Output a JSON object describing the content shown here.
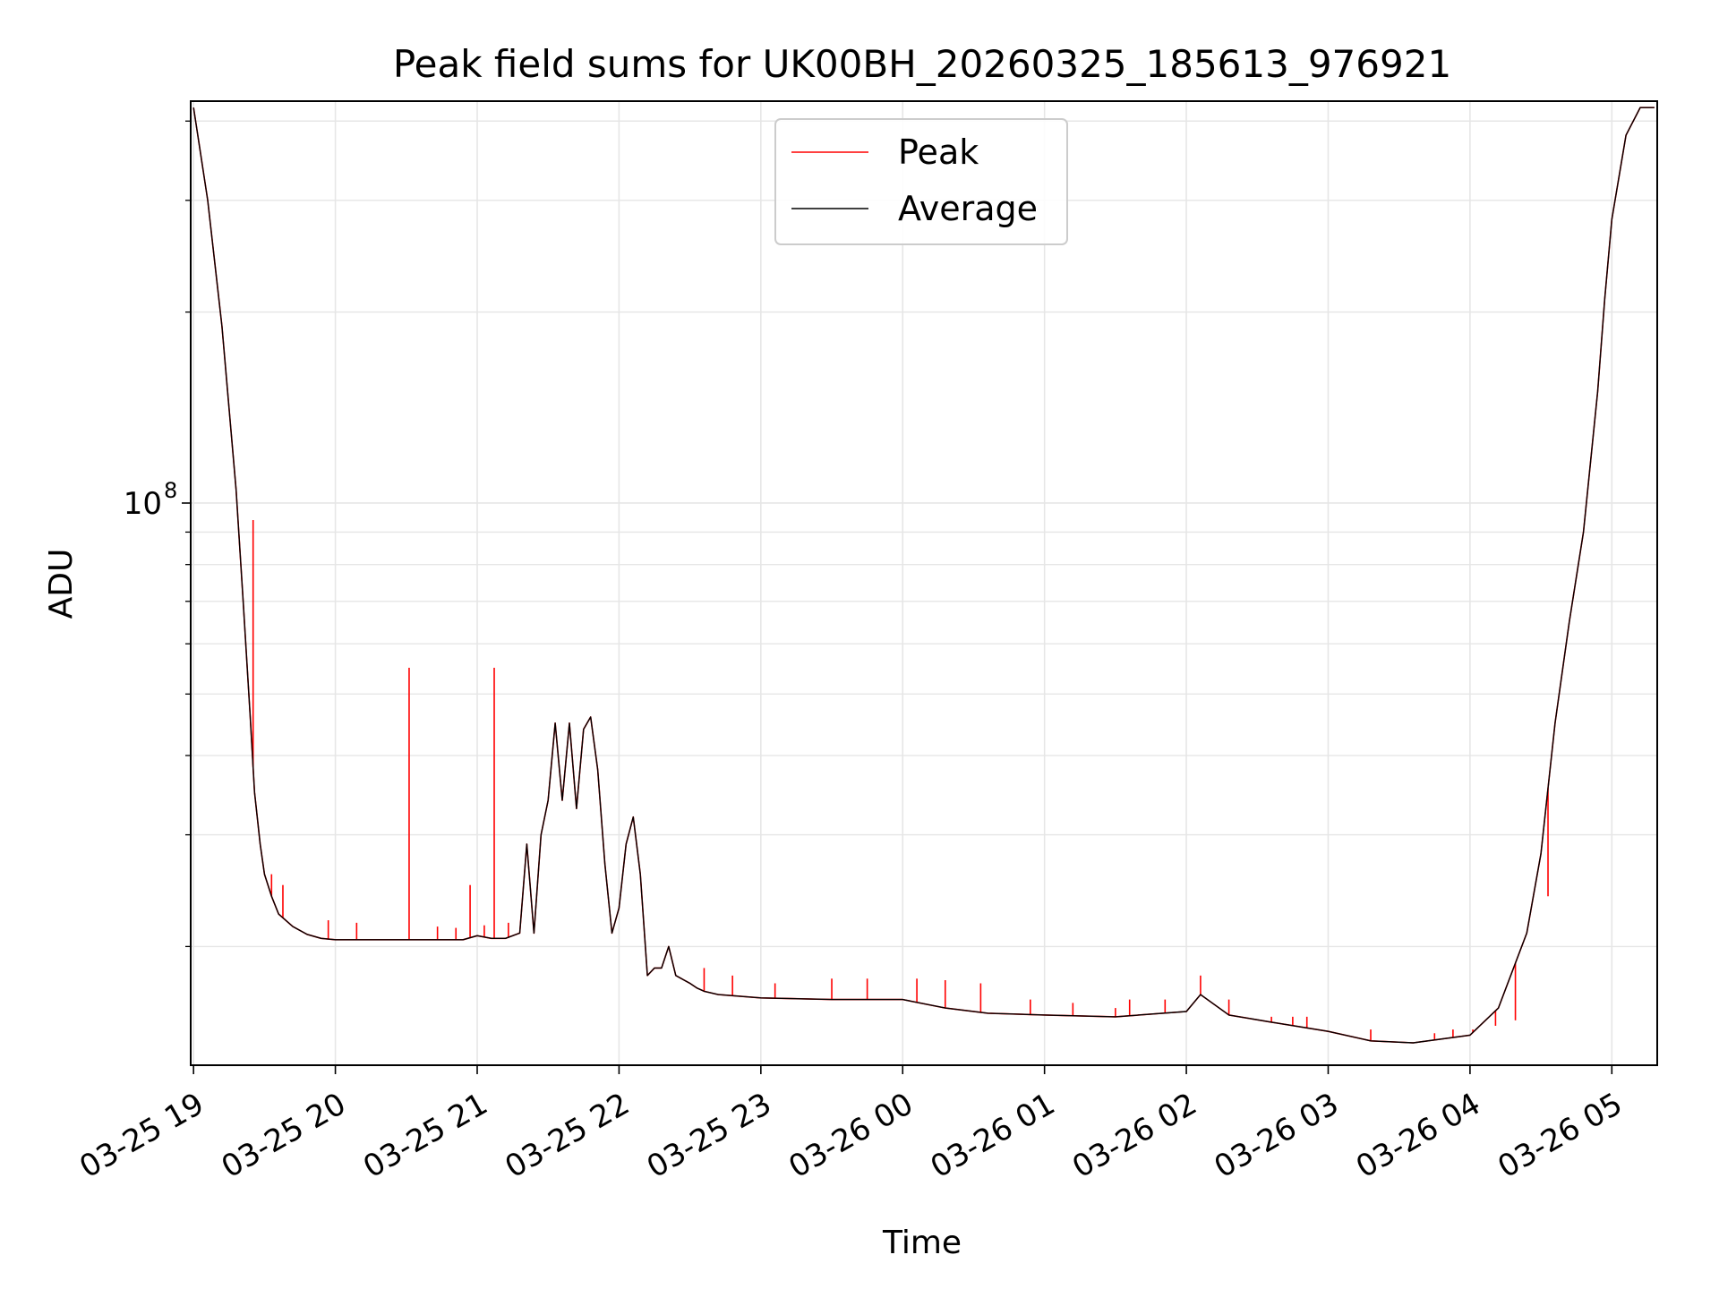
{
  "chart_data": {
    "type": "line",
    "title": "Peak field sums for UK00BH_20260325_185613_976921",
    "xlabel": "Time",
    "ylabel": "ADU",
    "yscale": "log",
    "ylim": [
      13000000.0,
      430000000.0
    ],
    "xlim": [
      -0.02,
      10.32
    ],
    "grid": true,
    "legend_position": "top-center",
    "x_unit": "hours since 03-25 19:00",
    "x_ticks": [
      0,
      1,
      2,
      3,
      4,
      5,
      6,
      7,
      8,
      9,
      10
    ],
    "x_tick_labels": [
      "03-25 19",
      "03-25 20",
      "03-25 21",
      "03-25 22",
      "03-25 23",
      "03-26 00",
      "03-26 01",
      "03-26 02",
      "03-26 03",
      "03-26 04",
      "03-26 05"
    ],
    "y_major_ticks": [
      100000000
    ],
    "y_major_tick_labels": [
      "10"
    ],
    "y_major_tick_exponents": [
      "8"
    ],
    "y_minor_ticks": [
      20000000,
      30000000,
      40000000,
      50000000,
      60000000,
      70000000,
      80000000,
      90000000,
      200000000,
      300000000,
      400000000
    ],
    "series": [
      {
        "name": "Average",
        "color": "#000000",
        "x": [
          0.0,
          0.1,
          0.2,
          0.3,
          0.35,
          0.4,
          0.43,
          0.47,
          0.5,
          0.55,
          0.6,
          0.7,
          0.8,
          0.9,
          1.0,
          1.2,
          1.4,
          1.6,
          1.8,
          1.9,
          2.0,
          2.1,
          2.2,
          2.3,
          2.35,
          2.4,
          2.45,
          2.5,
          2.55,
          2.6,
          2.65,
          2.7,
          2.75,
          2.8,
          2.85,
          2.9,
          2.95,
          3.0,
          3.05,
          3.1,
          3.15,
          3.2,
          3.25,
          3.3,
          3.35,
          3.4,
          3.5,
          3.55,
          3.6,
          3.7,
          4.0,
          4.5,
          5.0,
          5.3,
          5.6,
          6.0,
          6.5,
          7.0,
          7.1,
          7.3,
          7.6,
          8.0,
          8.3,
          8.6,
          9.0,
          9.2,
          9.4,
          9.5,
          9.6,
          9.7,
          9.8,
          9.9,
          9.95,
          10.0,
          10.1,
          10.2,
          10.3
        ],
        "y": [
          420000000,
          300000000,
          190000000,
          105000000,
          70000000,
          46000000,
          35000000,
          29000000,
          26000000,
          24000000,
          22500000,
          21500000,
          20900000,
          20600000,
          20500000,
          20500000,
          20500000,
          20500000,
          20500000,
          20500000,
          20800000,
          20600000,
          20600000,
          21000000,
          29000000,
          21000000,
          30000000,
          34000000,
          45000000,
          34000000,
          45000000,
          33000000,
          44000000,
          46000000,
          38000000,
          27000000,
          21000000,
          23000000,
          29000000,
          32000000,
          26000000,
          18000000,
          18500000,
          18500000,
          20000000,
          18000000,
          17500000,
          17200000,
          17000000,
          16800000,
          16600000,
          16500000,
          16500000,
          16000000,
          15700000,
          15600000,
          15500000,
          15800000,
          16800000,
          15600000,
          15200000,
          14700000,
          14200000,
          14100000,
          14500000,
          16000000,
          21000000,
          28000000,
          45000000,
          65000000,
          90000000,
          150000000,
          210000000,
          280000000,
          380000000,
          420000000,
          420000000
        ]
      },
      {
        "name": "Peak",
        "color": "#ff0000",
        "spikes": [
          [
            0.42,
            94000000
          ],
          [
            0.55,
            26000000
          ],
          [
            0.63,
            25000000
          ],
          [
            0.95,
            22000000
          ],
          [
            1.15,
            21800000
          ],
          [
            1.52,
            55000000
          ],
          [
            1.72,
            21500000
          ],
          [
            1.85,
            21400000
          ],
          [
            1.95,
            25000000
          ],
          [
            2.05,
            21600000
          ],
          [
            2.12,
            55000000
          ],
          [
            2.22,
            21800000
          ],
          [
            3.6,
            18500000
          ],
          [
            3.8,
            18000000
          ],
          [
            4.1,
            17500000
          ],
          [
            4.5,
            17800000
          ],
          [
            4.75,
            17800000
          ],
          [
            5.1,
            17800000
          ],
          [
            5.3,
            17700000
          ],
          [
            5.55,
            17500000
          ],
          [
            5.9,
            16500000
          ],
          [
            6.2,
            16300000
          ],
          [
            6.5,
            16000000
          ],
          [
            6.6,
            16500000
          ],
          [
            6.85,
            16500000
          ],
          [
            7.1,
            18000000
          ],
          [
            7.3,
            16500000
          ],
          [
            7.6,
            15500000
          ],
          [
            7.75,
            15500000
          ],
          [
            7.85,
            15500000
          ],
          [
            8.3,
            14800000
          ],
          [
            8.75,
            14600000
          ],
          [
            8.88,
            14800000
          ],
          [
            9.02,
            14800000
          ],
          [
            9.18,
            15000000
          ],
          [
            9.32,
            15300000
          ],
          [
            9.55,
            24000000
          ]
        ]
      }
    ]
  }
}
